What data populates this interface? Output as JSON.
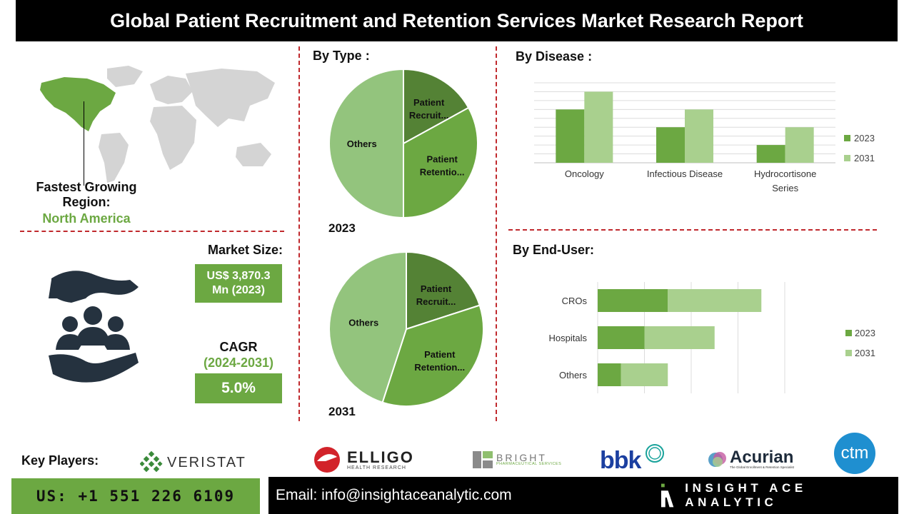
{
  "title": "Global Patient Recruitment and Retention Services Market Research Report",
  "region": {
    "label": "Fastest Growing Region:",
    "value": "North America"
  },
  "market_size": {
    "label": "Market Size:",
    "value": "US$ 3,870.3 Mn (2023)"
  },
  "cagr": {
    "label": "CAGR",
    "period": "(2024-2031)",
    "value": "5.0%"
  },
  "by_type": {
    "title": "By Type :",
    "year_a": "2023",
    "year_b": "2031"
  },
  "by_disease": {
    "title": "By  Disease :"
  },
  "by_end_user": {
    "title": "By End-User:"
  },
  "key_players": {
    "label": "Key Players:",
    "players": [
      "VERISTAT",
      "ELLIGO",
      "HEALTH RESEARCH",
      "BRIGHT",
      "PHARMACEUTICAL SERVICES",
      "bbk",
      "Acurian",
      "The Global Enrollment & Retention Specialist",
      "ctm"
    ]
  },
  "footer": {
    "phone": "US: +1 551 226 6109",
    "email": "Email: info@insightaceanalytic.com",
    "brand": "INSIGHT ACE ANALYTIC"
  },
  "colors": {
    "dark_green": "#548235",
    "mid_green": "#6ca842",
    "light_green": "#a9d08e",
    "pale_green": "#93c47d",
    "dash_red": "#c0292d"
  },
  "chart_data": [
    {
      "type": "pie",
      "title": "2023",
      "labels": [
        "Patient Recruit...",
        "Patient Retentio...",
        "Others"
      ],
      "values": [
        17,
        33,
        50
      ],
      "colors": [
        "#548235",
        "#6ca842",
        "#93c47d"
      ]
    },
    {
      "type": "pie",
      "title": "2031",
      "labels": [
        "Patient Recruit...",
        "Patient Retention...",
        "Others"
      ],
      "values": [
        20,
        35,
        45
      ],
      "colors": [
        "#548235",
        "#6ca842",
        "#93c47d"
      ]
    },
    {
      "type": "bar",
      "title": "By  Disease :",
      "categories": [
        "Oncology",
        "Infectious Disease",
        "Hydrocortisone Series"
      ],
      "series": [
        {
          "name": "2023",
          "values": [
            3,
            2,
            1
          ]
        },
        {
          "name": "2031",
          "values": [
            4,
            3,
            2
          ]
        }
      ],
      "ylim": [
        0,
        4.5
      ],
      "grid": true,
      "legend": "right"
    },
    {
      "type": "bar",
      "orientation": "horizontal",
      "stacked": true,
      "title": "By End-User:",
      "categories": [
        "CROs",
        "Hospitals",
        "Others"
      ],
      "series": [
        {
          "name": "2023",
          "values": [
            1.5,
            1.0,
            0.5
          ]
        },
        {
          "name": "2031",
          "values": [
            2.0,
            1.5,
            1.0
          ]
        }
      ],
      "xlim": [
        0,
        4
      ],
      "grid": true,
      "legend": "right"
    }
  ]
}
